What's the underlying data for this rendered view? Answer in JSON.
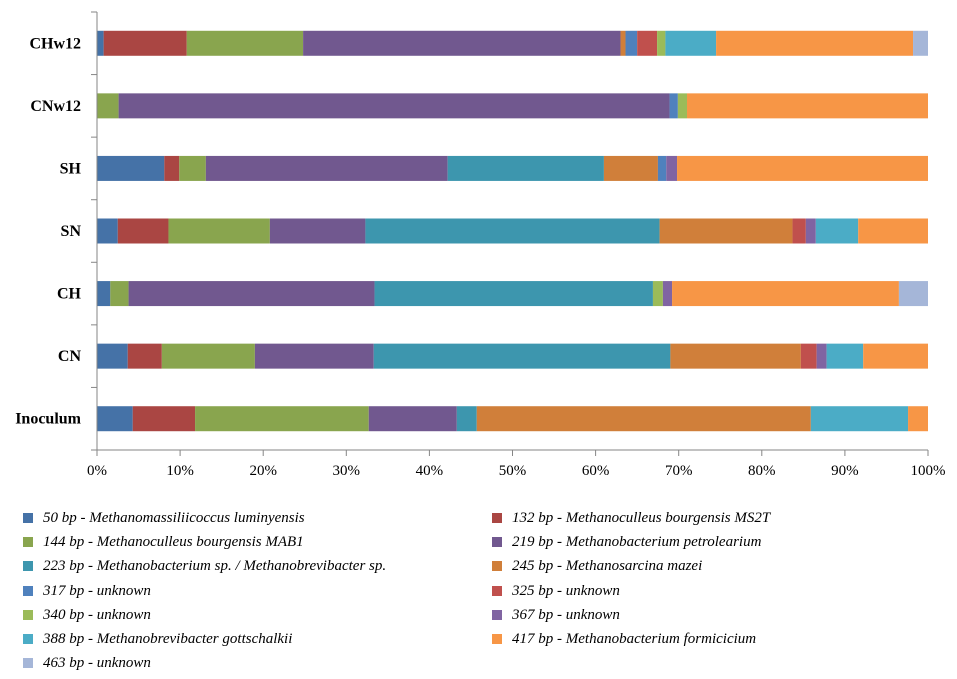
{
  "chart_data": {
    "type": "bar",
    "orientation": "horizontal",
    "stacked": true,
    "percent": true,
    "title": "",
    "xlabel": "",
    "ylabel": "",
    "xlim": [
      0,
      100
    ],
    "x_ticks": [
      "0%",
      "10%",
      "20%",
      "30%",
      "40%",
      "50%",
      "60%",
      "70%",
      "80%",
      "90%",
      "100%"
    ],
    "categories": [
      "CHw12",
      "CNw12",
      "SH",
      "SN",
      "CH",
      "CN",
      "Inoculum"
    ],
    "legend_position": "bottom",
    "series": [
      {
        "name": "50 bp - Methanomassiliicoccus luminyensis",
        "color": "#4572A7",
        "values": [
          0.8,
          0,
          8.1,
          2.5,
          1.6,
          3.7,
          4.3
        ]
      },
      {
        "name": "132 bp - Methanoculleus bourgensis MS2T",
        "color": "#AA4643",
        "values": [
          10.0,
          0,
          1.8,
          6.1,
          0,
          4.1,
          7.5
        ]
      },
      {
        "name": "144 bp - Methanoculleus bourgensis MAB1",
        "color": "#89A54E",
        "values": [
          14.0,
          2.6,
          3.2,
          12.2,
          2.2,
          11.2,
          20.9
        ]
      },
      {
        "name": "219 bp - Methanobacterium petrolearium",
        "color": "#71588F",
        "values": [
          38.2,
          66.3,
          29.1,
          11.5,
          29.6,
          14.3,
          10.6
        ]
      },
      {
        "name": "223 bp - Methanobacterium sp. / Methanobrevibacter sp.",
        "color": "#3D96AE",
        "values": [
          0,
          0,
          18.8,
          35.4,
          33.5,
          35.7,
          2.4
        ]
      },
      {
        "name": "245 bp - Methanosarcina mazei",
        "color": "#D07F3A",
        "values": [
          0.6,
          0,
          6.5,
          16.0,
          0,
          15.7,
          40.2
        ]
      },
      {
        "name": "317 bp - unknown",
        "color": "#4F81BD",
        "values": [
          1.4,
          1.0,
          1.0,
          0,
          0,
          0,
          0
        ]
      },
      {
        "name": "325 bp - unknown",
        "color": "#C0504D",
        "values": [
          2.4,
          0,
          0,
          1.6,
          0,
          1.9,
          0
        ]
      },
      {
        "name": "340 bp - unknown",
        "color": "#9BBB59",
        "values": [
          1.0,
          1.1,
          0,
          0,
          1.2,
          0,
          0
        ]
      },
      {
        "name": "367 bp - unknown",
        "color": "#8064A2",
        "values": [
          0,
          0,
          1.3,
          1.2,
          1.1,
          1.2,
          0
        ]
      },
      {
        "name": "388 bp - Methanobrevibacter gottschalkii",
        "color": "#4BACC6",
        "values": [
          6.1,
          0,
          0,
          5.1,
          0,
          4.4,
          11.7
        ]
      },
      {
        "name": "417 bp - Methanobacterium formicicium",
        "color": "#F79646",
        "values": [
          23.7,
          29.0,
          30.2,
          8.4,
          27.3,
          7.8,
          2.4
        ]
      },
      {
        "name": "463 bp - unknown",
        "color": "#A5B6D8",
        "values": [
          1.8,
          0,
          0,
          0,
          3.5,
          0,
          0
        ]
      }
    ]
  }
}
